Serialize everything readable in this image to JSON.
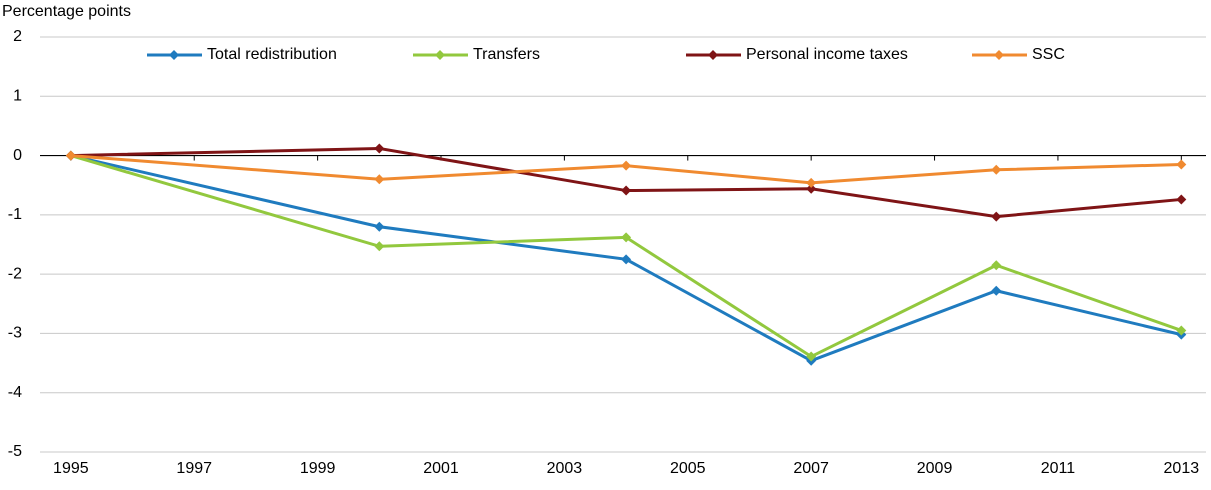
{
  "chart_data": {
    "type": "line",
    "y_axis_label": "Percentage points",
    "x": [
      1995,
      2000,
      2004,
      2007,
      2010,
      2013
    ],
    "series": [
      {
        "name": "Total redistribution",
        "color": "#1f7bbf",
        "values": [
          0,
          -1.2,
          -1.75,
          -3.46,
          -2.28,
          -3.02
        ]
      },
      {
        "name": "Transfers",
        "color": "#92c83e",
        "values": [
          0,
          -1.53,
          -1.38,
          -3.39,
          -1.85,
          -2.95
        ]
      },
      {
        "name": "Personal income taxes",
        "color": "#7f1416",
        "values": [
          0,
          0.12,
          -0.59,
          -0.56,
          -1.03,
          -0.74
        ]
      },
      {
        "name": "SSC",
        "color": "#f08a30",
        "values": [
          0,
          -0.4,
          -0.17,
          -0.46,
          -0.24,
          -0.15
        ]
      }
    ],
    "xlim": [
      1994.5,
      2013.4
    ],
    "xticks": [
      1995,
      1997,
      1999,
      2001,
      2003,
      2005,
      2007,
      2009,
      2011,
      2013
    ],
    "ylim": [
      -5,
      2
    ],
    "yticks": [
      -5,
      -4,
      -3,
      -2,
      -1,
      0,
      1,
      2
    ],
    "grid": true,
    "legend": "top"
  }
}
